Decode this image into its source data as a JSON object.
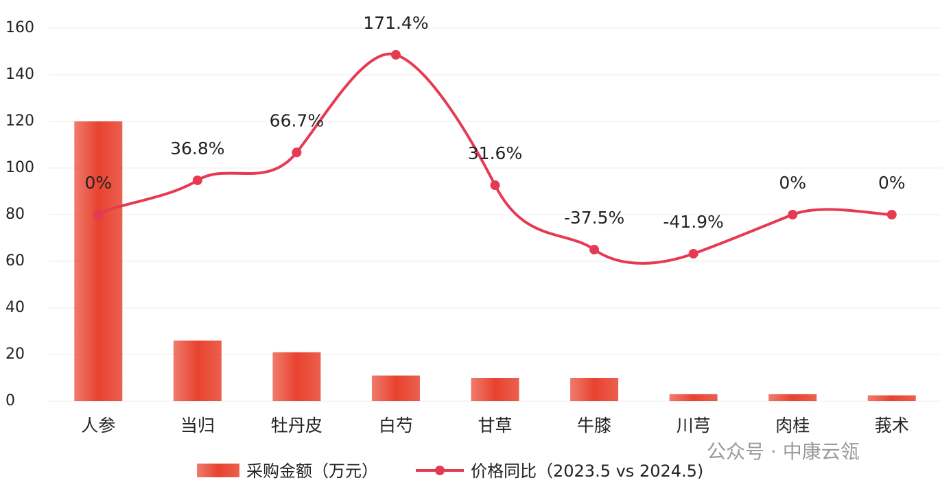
{
  "chart_data": {
    "type": "bar-line",
    "categories": [
      "人参",
      "当归",
      "牡丹皮",
      "白芍",
      "甘草",
      "牛膝",
      "川芎",
      "肉桂",
      "莪术"
    ],
    "series": [
      {
        "name": "采购金额（万元）",
        "type": "bar",
        "color": "#e8432f",
        "values": [
          120,
          26,
          21,
          11,
          10,
          10,
          3,
          3,
          2.5
        ]
      },
      {
        "name": "价格同比（2023.5 vs 2024.5)",
        "type": "line",
        "axis": "y2",
        "color": "#e63a52",
        "values": [
          0,
          36.8,
          66.7,
          171.4,
          31.6,
          -37.5,
          -41.9,
          0,
          0
        ],
        "value_labels": [
          "0%",
          "36.8%",
          "66.7%",
          "171.4%",
          "31.6%",
          "-37.5%",
          "-41.9%",
          "0%",
          "0%"
        ]
      }
    ],
    "ylim": [
      0,
      160
    ],
    "yticks": [
      0,
      20,
      40,
      60,
      80,
      100,
      120,
      140,
      160
    ],
    "y2lim": [
      -200,
      200
    ],
    "grid": true,
    "legend": "bottom",
    "watermark": "公众号 · 中康云瓴"
  }
}
